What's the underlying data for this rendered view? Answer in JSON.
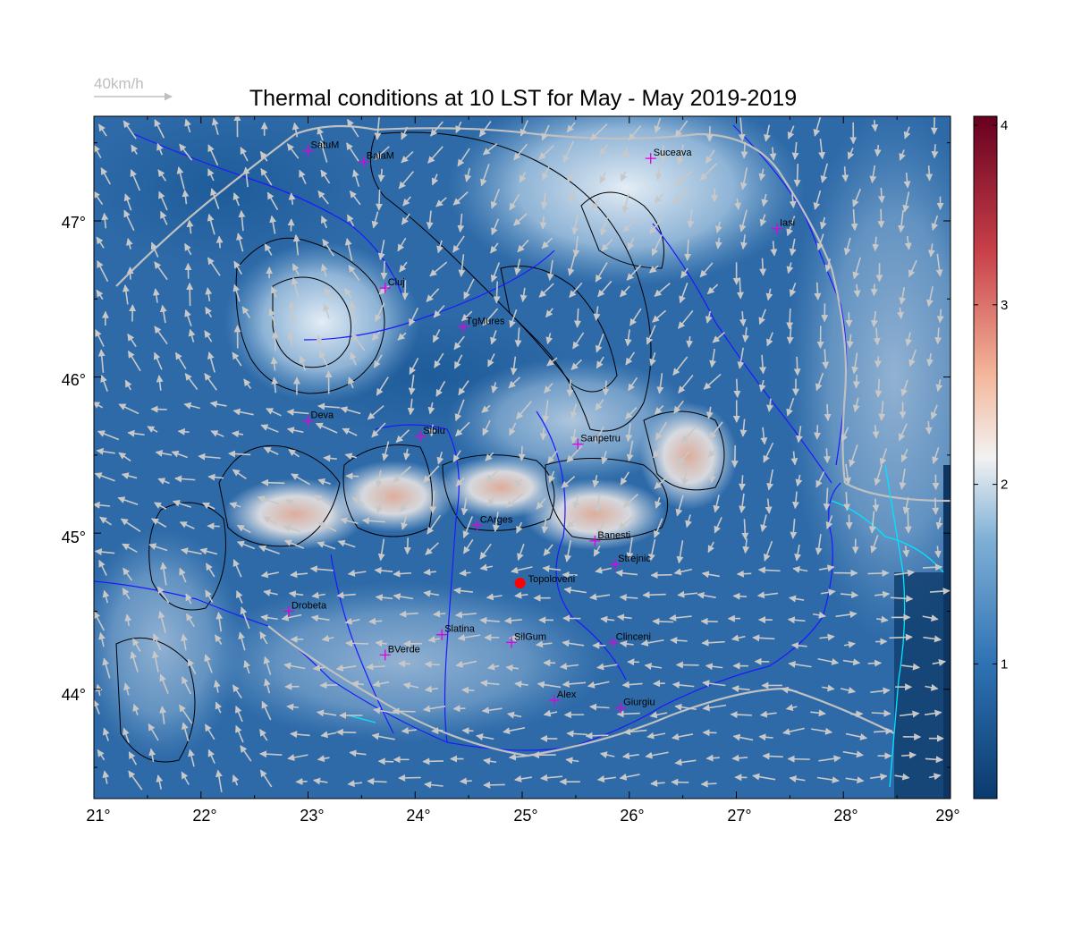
{
  "title": "Thermal conditions at 10 LST for May - May  2019-2019",
  "reference_vector": {
    "label": "40km/h",
    "color": "#c0c0c0"
  },
  "lon_ticks": [
    "21°",
    "22°",
    "23°",
    "24°",
    "25°",
    "26°",
    "27°",
    "28°",
    "29°"
  ],
  "lat_ticks": [
    "44°",
    "45°",
    "46°",
    "47°"
  ],
  "colorbar": {
    "ticks": [
      "1",
      "2",
      "3",
      "4"
    ],
    "stops": [
      "#0b3a6e",
      "#2f73b4",
      "#7fb0d6",
      "#f2f2f2",
      "#f3b79b",
      "#c9414a",
      "#67001f"
    ],
    "range": [
      0.25,
      4.05
    ]
  },
  "cities": [
    {
      "name": "SatuM",
      "lon": 23.0,
      "lat": 47.45
    },
    {
      "name": "BaiaM",
      "lon": 23.52,
      "lat": 47.38
    },
    {
      "name": "Suceava",
      "lon": 26.2,
      "lat": 47.4
    },
    {
      "name": "Iasi",
      "lon": 27.38,
      "lat": 46.95
    },
    {
      "name": "Cluj",
      "lon": 23.72,
      "lat": 46.57
    },
    {
      "name": "TgMures",
      "lon": 24.45,
      "lat": 46.32
    },
    {
      "name": "Deva",
      "lon": 23.0,
      "lat": 45.72
    },
    {
      "name": "Sibiu",
      "lon": 24.05,
      "lat": 45.62
    },
    {
      "name": "Sanpetru",
      "lon": 25.52,
      "lat": 45.57
    },
    {
      "name": "CArges",
      "lon": 24.58,
      "lat": 45.05
    },
    {
      "name": "Banesti",
      "lon": 25.68,
      "lat": 44.95
    },
    {
      "name": "Strejnic",
      "lon": 25.87,
      "lat": 44.8
    },
    {
      "name": "Drobeta",
      "lon": 22.82,
      "lat": 44.5
    },
    {
      "name": "Slatina",
      "lon": 24.25,
      "lat": 44.35
    },
    {
      "name": "SilGum",
      "lon": 24.9,
      "lat": 44.3
    },
    {
      "name": "BVerde",
      "lon": 23.72,
      "lat": 44.22
    },
    {
      "name": "Clinceni",
      "lon": 25.85,
      "lat": 44.3
    },
    {
      "name": "Alex",
      "lon": 25.3,
      "lat": 43.93
    },
    {
      "name": "Giurgiu",
      "lon": 25.92,
      "lat": 43.88
    }
  ],
  "highlight_site": {
    "name": "Topoloveni",
    "lon": 24.98,
    "lat": 44.68,
    "color": "#ff0000"
  },
  "colors": {
    "city_marker": "#e000e0",
    "rivers": "#1a1aff",
    "coast": "#00e5ff",
    "border": "#c0c0c0",
    "contours": "#000000",
    "wind": "#c8c8c8"
  }
}
